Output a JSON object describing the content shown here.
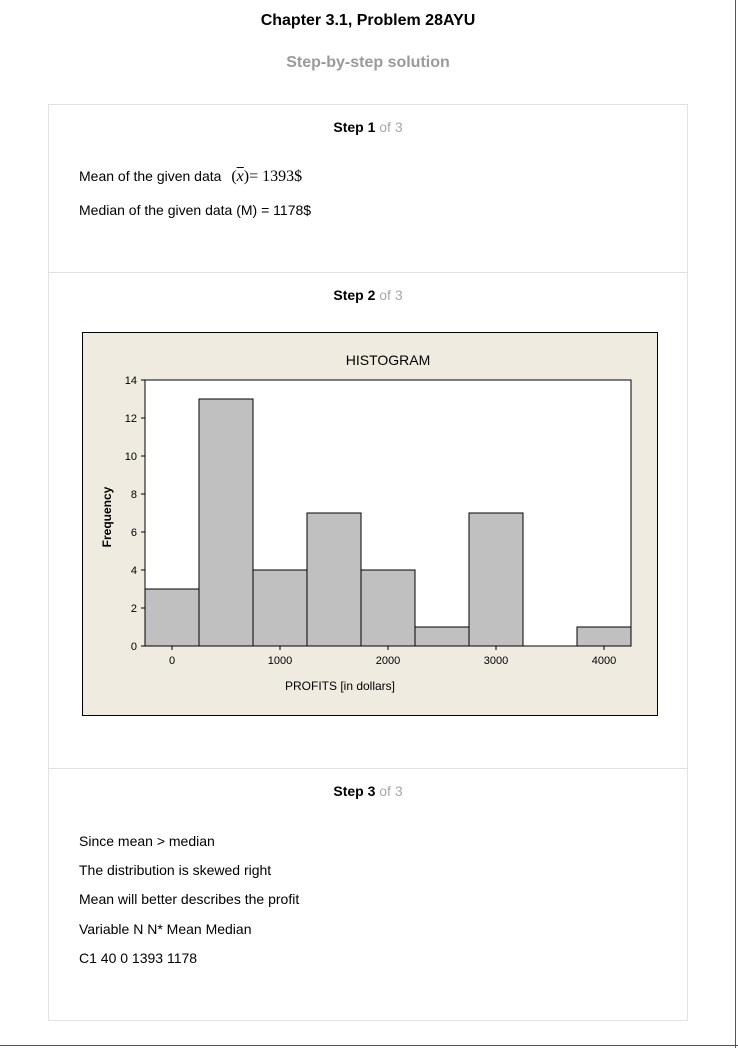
{
  "header": {
    "title": "Chapter 3.1, Problem 28AYU",
    "subtitle": "Step-by-step solution"
  },
  "steps": [
    {
      "label": "Step 1",
      "of": "of 3",
      "lines": {
        "mean_prefix": "Mean of the given data",
        "mean_formula_open": "(",
        "mean_formula_symbol": "x",
        "mean_formula_close": ")",
        "mean_formula_value": "= 1393$",
        "median": "Median of the given data (M) = 1178$"
      }
    },
    {
      "label": "Step 2",
      "of": "of 3"
    },
    {
      "label": "Step 3",
      "of": "of 3",
      "lines": [
        "Since mean > median",
        "The distribution is skewed right",
        "Mean will better describes the profit",
        "Variable N N* Mean Median",
        "C1 40 0 1393 1178"
      ]
    }
  ],
  "chart_data": {
    "type": "bar",
    "title": "HISTOGRAM",
    "xlabel": "PROFITS [in dollars]",
    "ylabel": "Frequency",
    "bin_width": 500,
    "bin_centers": [
      0,
      500,
      1000,
      1500,
      2000,
      2500,
      3000,
      3500,
      4000
    ],
    "values": [
      3,
      13,
      4,
      7,
      4,
      1,
      7,
      0,
      1
    ],
    "x_ticks": [
      0,
      1000,
      2000,
      3000,
      4000
    ],
    "x_tick_labels": [
      "0",
      "1000",
      "2000",
      "3000",
      "4000"
    ],
    "y_ticks": [
      0,
      2,
      4,
      6,
      8,
      10,
      12,
      14
    ],
    "y_tick_labels": [
      "0",
      "2",
      "4",
      "6",
      "8",
      "10",
      "12",
      "14"
    ],
    "xlim": [
      -250,
      4250
    ],
    "ylim": [
      0,
      14
    ],
    "grid": false,
    "colors": {
      "bar_fill": "#c0c0c0",
      "bar_stroke": "#000000",
      "background": "#f0ebe1",
      "plot_area": "#ffffff"
    }
  }
}
